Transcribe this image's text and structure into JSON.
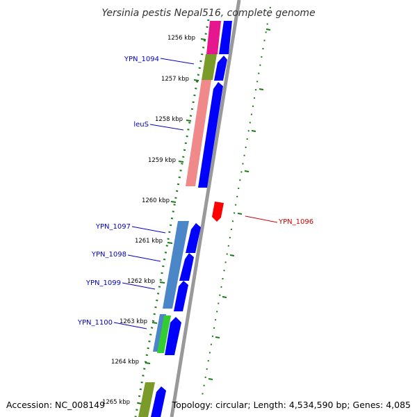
{
  "title": "Yersinia pestis Nepal516, complete genome",
  "accession": "Accession: NC_008149",
  "topology": "Topology: circular; Length: 4,534,590 bp; Genes: 4,085",
  "colors": {
    "backbone": "#999999",
    "forward_cds": "#0000ff",
    "reverse_cds": "#ff0000",
    "label_blue": "#0000cc",
    "label_red": "#cc0000",
    "tick": "#1a7a1a",
    "magenta": "#e6178e",
    "olive": "#7a9a2a",
    "salmon": "#f08a8a",
    "steelblue": "#4a86c8",
    "green": "#33cc33"
  },
  "kbp_labels": [
    "1256 kbp",
    "1257 kbp",
    "1258 kbp",
    "1259 kbp",
    "1260 kbp",
    "1261 kbp",
    "1262 kbp",
    "1263 kbp",
    "1264 kbp",
    "1265 kbp"
  ],
  "gene_labels": [
    {
      "text": "YPN_1094",
      "strand": "forward"
    },
    {
      "text": "leuS",
      "strand": "forward"
    },
    {
      "text": "YPN_1097",
      "strand": "forward"
    },
    {
      "text": "YPN_1098",
      "strand": "forward"
    },
    {
      "text": "YPN_1099",
      "strand": "forward"
    },
    {
      "text": "YPN_1100",
      "strand": "forward"
    },
    {
      "text": "YPN_1096",
      "strand": "reverse"
    }
  ]
}
